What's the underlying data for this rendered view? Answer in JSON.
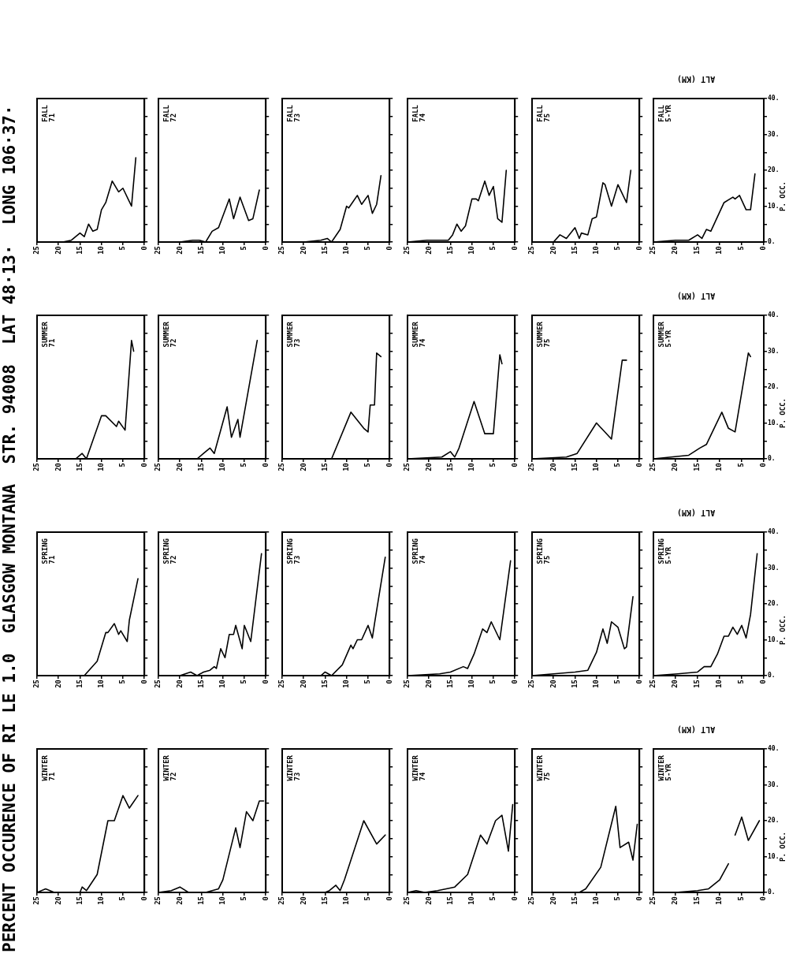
{
  "chart_data": [
    {
      "type": "line",
      "title": "FALL 71",
      "annotations": [
        "PERCENT OCCURENCE OF RI LE 1.0  GLASGOW MONTANA  STR. 94008  LAT 48·13·  LONG 106·37·"
      ],
      "color": "#000000",
      "x": [
        25,
        19,
        17,
        15,
        14,
        13,
        12,
        11,
        10,
        9,
        7.5,
        6,
        5,
        3,
        2
      ],
      "values": [
        0,
        0,
        0.5,
        2.5,
        1.5,
        5,
        3,
        3.5,
        9,
        11,
        17,
        14,
        15,
        10,
        23.5
      ],
      "xlim": [
        25,
        0
      ],
      "ylim": [
        0,
        40
      ],
      "xticks": [
        25,
        20,
        15,
        10,
        5,
        0
      ],
      "yticks": [
        {
          "value": 0,
          "label": null
        },
        {
          "value": 5,
          "label": null
        },
        {
          "value": 10,
          "label": null
        },
        {
          "value": 15,
          "label": null
        },
        {
          "value": 20,
          "label": null
        },
        {
          "value": 25,
          "label": null
        },
        {
          "value": 30,
          "label": null
        },
        {
          "value": 35,
          "label": null
        },
        {
          "value": 40,
          "label": null
        }
      ],
      "tick_labels": "x"
    },
    {
      "type": "line",
      "title": "FALL 72",
      "color": "#000000",
      "x": [
        25,
        20,
        17,
        15.5,
        14,
        12.5,
        11,
        8.5,
        7.5,
        6,
        4,
        3,
        1.5
      ],
      "values": [
        0,
        0,
        0.5,
        0.5,
        0,
        3,
        4,
        12,
        6.5,
        12.5,
        6,
        6.5,
        14.5
      ],
      "xlim": [
        25,
        0
      ],
      "ylim": [
        0,
        40
      ],
      "xticks": [
        25,
        20,
        15,
        10,
        5,
        0
      ],
      "yticks": [
        {
          "value": 0,
          "label": null
        },
        {
          "value": 5,
          "label": null
        },
        {
          "value": 10,
          "label": null
        },
        {
          "value": 15,
          "label": null
        },
        {
          "value": 20,
          "label": null
        },
        {
          "value": 25,
          "label": null
        },
        {
          "value": 30,
          "label": null
        },
        {
          "value": 35,
          "label": null
        },
        {
          "value": 40,
          "label": null
        }
      ],
      "tick_labels": "x"
    },
    {
      "type": "line",
      "title": "FALL 73",
      "color": "#000000",
      "x": [
        25,
        20,
        16,
        14.5,
        13.5,
        11.5,
        10,
        9.5,
        7.5,
        6.5,
        5,
        4,
        3,
        2
      ],
      "values": [
        0,
        0,
        0.5,
        1,
        0,
        3.5,
        10,
        9.5,
        13,
        10.5,
        13,
        8,
        10.5,
        18.5
      ],
      "xlim": [
        25,
        0
      ],
      "ylim": [
        0,
        40
      ],
      "xticks": [
        25,
        20,
        15,
        10,
        5,
        0
      ],
      "yticks": [
        {
          "value": 0,
          "label": null
        },
        {
          "value": 5,
          "label": null
        },
        {
          "value": 10,
          "label": null
        },
        {
          "value": 15,
          "label": null
        },
        {
          "value": 20,
          "label": null
        },
        {
          "value": 25,
          "label": null
        },
        {
          "value": 30,
          "label": null
        },
        {
          "value": 35,
          "label": null
        },
        {
          "value": 40,
          "label": null
        }
      ],
      "tick_labels": "x"
    },
    {
      "type": "line",
      "title": "FALL 74",
      "color": "#000000",
      "x": [
        25,
        20.5,
        15.5,
        14.5,
        13.5,
        12.5,
        11.5,
        10,
        9,
        8.5,
        7,
        6,
        5,
        4,
        3,
        2
      ],
      "values": [
        0,
        0.5,
        0.5,
        2,
        5,
        3,
        4.5,
        12,
        12,
        11.5,
        17,
        13,
        15.5,
        6.5,
        5.5,
        20
      ],
      "xlim": [
        25,
        0
      ],
      "ylim": [
        0,
        40
      ],
      "xticks": [
        25,
        20,
        15,
        10,
        5,
        0
      ],
      "yticks": [
        {
          "value": 0,
          "label": null
        },
        {
          "value": 5,
          "label": null
        },
        {
          "value": 10,
          "label": null
        },
        {
          "value": 15,
          "label": null
        },
        {
          "value": 20,
          "label": null
        },
        {
          "value": 25,
          "label": null
        },
        {
          "value": 30,
          "label": null
        },
        {
          "value": 35,
          "label": null
        },
        {
          "value": 40,
          "label": null
        }
      ],
      "tick_labels": "x"
    },
    {
      "type": "line",
      "title": "FALL 75",
      "color": "#000000",
      "x": [
        25,
        20,
        18.5,
        17,
        15,
        14,
        13.5,
        12,
        11,
        10,
        8.5,
        8,
        6.5,
        5,
        3,
        2
      ],
      "values": [
        0,
        0,
        2,
        1,
        4,
        1,
        2.5,
        2,
        6.5,
        7,
        16.5,
        16,
        10,
        16,
        11,
        20
      ],
      "xlim": [
        25,
        0
      ],
      "ylim": [
        0,
        40
      ],
      "xticks": [
        25,
        20,
        15,
        10,
        5,
        0
      ],
      "yticks": [
        {
          "value": 0,
          "label": null
        },
        {
          "value": 5,
          "label": null
        },
        {
          "value": 10,
          "label": null
        },
        {
          "value": 15,
          "label": null
        },
        {
          "value": 20,
          "label": null
        },
        {
          "value": 25,
          "label": null
        },
        {
          "value": 30,
          "label": null
        },
        {
          "value": 35,
          "label": null
        },
        {
          "value": 40,
          "label": null
        }
      ],
      "tick_labels": "x"
    },
    {
      "type": "line",
      "title": "FALL 5-YR",
      "xlabel": "ALT (KM)",
      "ylabel": "P. OCC.",
      "color": "#000000",
      "x": [
        25,
        20,
        17,
        15,
        14,
        13,
        12,
        9,
        7,
        6.5,
        5.5,
        4,
        3,
        2
      ],
      "values": [
        0,
        0.5,
        0.5,
        2,
        1,
        3.5,
        3,
        11,
        12.5,
        12,
        13,
        9,
        9,
        19
      ],
      "xlim": [
        25,
        0
      ],
      "ylim": [
        0,
        40
      ],
      "xticks": [
        25,
        20,
        15,
        10,
        5,
        0
      ],
      "yticks": [
        {
          "value": 0,
          "label": "0."
        },
        {
          "value": 5,
          "label": null
        },
        {
          "value": 10,
          "label": "10."
        },
        {
          "value": 15,
          "label": null
        },
        {
          "value": 20,
          "label": "20."
        },
        {
          "value": 25,
          "label": null
        },
        {
          "value": 30,
          "label": "30."
        },
        {
          "value": 35,
          "label": null
        },
        {
          "value": 40,
          "label": "40."
        }
      ]
    },
    {
      "type": "line",
      "title": "SUMMER 71",
      "color": "#000000",
      "x": [
        25,
        16,
        14.5,
        13.5,
        10,
        9,
        6.5,
        6,
        4.5,
        3,
        2.5
      ],
      "values": [
        0,
        0,
        1.5,
        0,
        12,
        12,
        9,
        10.5,
        8,
        33,
        30
      ],
      "xlim": [
        25,
        0
      ],
      "ylim": [
        0,
        40
      ],
      "xticks": [
        25,
        20,
        15,
        10,
        5,
        0
      ],
      "yticks": [
        {
          "value": 0,
          "label": null
        },
        {
          "value": 5,
          "label": null
        },
        {
          "value": 10,
          "label": null
        },
        {
          "value": 15,
          "label": null
        },
        {
          "value": 20,
          "label": null
        },
        {
          "value": 25,
          "label": null
        },
        {
          "value": 30,
          "label": null
        },
        {
          "value": 35,
          "label": null
        },
        {
          "value": 40,
          "label": null
        }
      ],
      "tick_labels": "x"
    },
    {
      "type": "line",
      "title": "SUMMER 72",
      "color": "#000000",
      "x": [
        25,
        16,
        14.5,
        13,
        12,
        9,
        8,
        6.5,
        6,
        2
      ],
      "values": [
        0,
        0,
        1.5,
        3,
        1.5,
        14.5,
        6,
        11,
        6,
        33
      ],
      "xlim": [
        25,
        0
      ],
      "ylim": [
        0,
        40
      ],
      "xticks": [
        25,
        20,
        15,
        10,
        5,
        0
      ],
      "yticks": [
        {
          "value": 0,
          "label": null
        },
        {
          "value": 5,
          "label": null
        },
        {
          "value": 10,
          "label": null
        },
        {
          "value": 15,
          "label": null
        },
        {
          "value": 20,
          "label": null
        },
        {
          "value": 25,
          "label": null
        },
        {
          "value": 30,
          "label": null
        },
        {
          "value": 35,
          "label": null
        },
        {
          "value": 40,
          "label": null
        }
      ],
      "tick_labels": "x"
    },
    {
      "type": "line",
      "title": "SUMMER 73",
      "color": "#000000",
      "x": [
        25,
        13.5,
        9,
        6,
        5,
        4.5,
        3.5,
        3,
        2
      ],
      "values": [
        0,
        0,
        13,
        8.5,
        7.5,
        15,
        15,
        29.5,
        28.5
      ],
      "xlim": [
        25,
        0
      ],
      "ylim": [
        0,
        40
      ],
      "xticks": [
        25,
        20,
        15,
        10,
        5,
        0
      ],
      "yticks": [
        {
          "value": 0,
          "label": null
        },
        {
          "value": 5,
          "label": null
        },
        {
          "value": 10,
          "label": null
        },
        {
          "value": 15,
          "label": null
        },
        {
          "value": 20,
          "label": null
        },
        {
          "value": 25,
          "label": null
        },
        {
          "value": 30,
          "label": null
        },
        {
          "value": 35,
          "label": null
        },
        {
          "value": 40,
          "label": null
        }
      ],
      "tick_labels": "x"
    },
    {
      "type": "line",
      "title": "SUMMER 74",
      "color": "#000000",
      "x": [
        25,
        17,
        15,
        14,
        13,
        9.5,
        7,
        5,
        3.5,
        3
      ],
      "values": [
        0,
        0.5,
        2,
        0.5,
        3,
        16,
        7,
        7,
        29,
        26.5
      ],
      "xlim": [
        25,
        0
      ],
      "ylim": [
        0,
        40
      ],
      "xticks": [
        25,
        20,
        15,
        10,
        5,
        0
      ],
      "yticks": [
        {
          "value": 0,
          "label": null
        },
        {
          "value": 5,
          "label": null
        },
        {
          "value": 10,
          "label": null
        },
        {
          "value": 15,
          "label": null
        },
        {
          "value": 20,
          "label": null
        },
        {
          "value": 25,
          "label": null
        },
        {
          "value": 30,
          "label": null
        },
        {
          "value": 35,
          "label": null
        },
        {
          "value": 40,
          "label": null
        }
      ],
      "tick_labels": "x"
    },
    {
      "type": "line",
      "title": "SUMMER 75",
      "color": "#000000",
      "x": [
        25,
        17,
        14.5,
        10,
        6.5,
        4,
        3
      ],
      "values": [
        0,
        0.5,
        1.5,
        10,
        5.5,
        27.5,
        27.5
      ],
      "xlim": [
        25,
        0
      ],
      "ylim": [
        0,
        40
      ],
      "xticks": [
        25,
        20,
        15,
        10,
        5,
        0
      ],
      "yticks": [
        {
          "value": 0,
          "label": null
        },
        {
          "value": 5,
          "label": null
        },
        {
          "value": 10,
          "label": null
        },
        {
          "value": 15,
          "label": null
        },
        {
          "value": 20,
          "label": null
        },
        {
          "value": 25,
          "label": null
        },
        {
          "value": 30,
          "label": null
        },
        {
          "value": 35,
          "label": null
        },
        {
          "value": 40,
          "label": null
        }
      ],
      "tick_labels": "x"
    },
    {
      "type": "line",
      "title": "SUMMER 5-YR",
      "xlabel": "ALT (KM)",
      "ylabel": "P. OCC.",
      "color": "#000000",
      "x": [
        25,
        17,
        14.5,
        13,
        9.5,
        8,
        6.5,
        3.5,
        3
      ],
      "values": [
        0,
        1,
        3,
        4,
        13,
        8.5,
        7.5,
        29.5,
        28.5
      ],
      "xlim": [
        25,
        0
      ],
      "ylim": [
        0,
        40
      ],
      "xticks": [
        25,
        20,
        15,
        10,
        5,
        0
      ],
      "yticks": [
        {
          "value": 0,
          "label": "0."
        },
        {
          "value": 5,
          "label": null
        },
        {
          "value": 10,
          "label": "10."
        },
        {
          "value": 15,
          "label": null
        },
        {
          "value": 20,
          "label": "20."
        },
        {
          "value": 25,
          "label": null
        },
        {
          "value": 30,
          "label": "30."
        },
        {
          "value": 35,
          "label": null
        },
        {
          "value": 40,
          "label": "40."
        }
      ]
    },
    {
      "type": "line",
      "title": "SPRING 71",
      "color": "#000000",
      "x": [
        25,
        14,
        11,
        9,
        8.5,
        7,
        6,
        5.5,
        4,
        3.5,
        1.5
      ],
      "values": [
        0,
        0,
        4,
        12,
        12,
        14.5,
        11.5,
        12.5,
        9.5,
        15.5,
        27
      ],
      "xlim": [
        25,
        0
      ],
      "ylim": [
        0,
        40
      ],
      "xticks": [
        25,
        20,
        15,
        10,
        5,
        0
      ],
      "yticks": [
        {
          "value": 0,
          "label": null
        },
        {
          "value": 5,
          "label": null
        },
        {
          "value": 10,
          "label": null
        },
        {
          "value": 15,
          "label": null
        },
        {
          "value": 20,
          "label": null
        },
        {
          "value": 25,
          "label": null
        },
        {
          "value": 30,
          "label": null
        },
        {
          "value": 35,
          "label": null
        },
        {
          "value": 40,
          "label": null
        }
      ],
      "tick_labels": "x"
    },
    {
      "type": "line",
      "title": "SPRING 72",
      "color": "#000000",
      "x": [
        25,
        20,
        17.5,
        16,
        14.5,
        13,
        12,
        11.5,
        10.5,
        9.5,
        8.5,
        7.5,
        7,
        5.5,
        5,
        3.5,
        1
      ],
      "values": [
        0,
        0,
        1,
        0,
        1,
        1.5,
        2.5,
        2,
        7.5,
        5,
        11.5,
        11.5,
        14,
        7.5,
        14,
        9.5,
        34
      ],
      "xlim": [
        25,
        0
      ],
      "ylim": [
        0,
        40
      ],
      "xticks": [
        25,
        20,
        15,
        10,
        5,
        0
      ],
      "yticks": [
        {
          "value": 0,
          "label": null
        },
        {
          "value": 5,
          "label": null
        },
        {
          "value": 10,
          "label": null
        },
        {
          "value": 15,
          "label": null
        },
        {
          "value": 20,
          "label": null
        },
        {
          "value": 25,
          "label": null
        },
        {
          "value": 30,
          "label": null
        },
        {
          "value": 35,
          "label": null
        },
        {
          "value": 40,
          "label": null
        }
      ],
      "tick_labels": "x"
    },
    {
      "type": "line",
      "title": "SPRING 73",
      "color": "#000000",
      "x": [
        25,
        16,
        15,
        13.5,
        11,
        9,
        8.5,
        7.5,
        6.5,
        5,
        4,
        3.5,
        1
      ],
      "values": [
        0,
        0,
        1,
        0,
        3,
        8.5,
        7.5,
        10,
        10,
        14,
        10.5,
        14.5,
        33
      ],
      "xlim": [
        25,
        0
      ],
      "ylim": [
        0,
        40
      ],
      "xticks": [
        25,
        20,
        15,
        10,
        5,
        0
      ],
      "yticks": [
        {
          "value": 0,
          "label": null
        },
        {
          "value": 5,
          "label": null
        },
        {
          "value": 10,
          "label": null
        },
        {
          "value": 15,
          "label": null
        },
        {
          "value": 20,
          "label": null
        },
        {
          "value": 25,
          "label": null
        },
        {
          "value": 30,
          "label": null
        },
        {
          "value": 35,
          "label": null
        },
        {
          "value": 40,
          "label": null
        }
      ],
      "tick_labels": "x"
    },
    {
      "type": "line",
      "title": "SPRING 74",
      "color": "#000000",
      "x": [
        25,
        17.5,
        15,
        12,
        11,
        9.5,
        7.5,
        6.5,
        5.5,
        3.5,
        1
      ],
      "values": [
        0,
        0.5,
        1,
        2.5,
        2,
        6,
        13,
        12,
        15,
        10,
        32
      ],
      "xlim": [
        25,
        0
      ],
      "ylim": [
        0,
        40
      ],
      "xticks": [
        25,
        20,
        15,
        10,
        5,
        0
      ],
      "yticks": [
        {
          "value": 0,
          "label": null
        },
        {
          "value": 5,
          "label": null
        },
        {
          "value": 10,
          "label": null
        },
        {
          "value": 15,
          "label": null
        },
        {
          "value": 20,
          "label": null
        },
        {
          "value": 25,
          "label": null
        },
        {
          "value": 30,
          "label": null
        },
        {
          "value": 35,
          "label": null
        },
        {
          "value": 40,
          "label": null
        }
      ],
      "tick_labels": "x"
    },
    {
      "type": "line",
      "title": "SPRING 75",
      "color": "#000000",
      "x": [
        25,
        15,
        12,
        10,
        8.5,
        7.5,
        6.5,
        5,
        3.5,
        3,
        1.5
      ],
      "values": [
        0,
        1,
        1.5,
        6.5,
        13,
        9,
        15,
        13.5,
        7.5,
        8,
        22
      ],
      "xlim": [
        25,
        0
      ],
      "ylim": [
        0,
        40
      ],
      "xticks": [
        25,
        20,
        15,
        10,
        5,
        0
      ],
      "yticks": [
        {
          "value": 0,
          "label": null
        },
        {
          "value": 5,
          "label": null
        },
        {
          "value": 10,
          "label": null
        },
        {
          "value": 15,
          "label": null
        },
        {
          "value": 20,
          "label": null
        },
        {
          "value": 25,
          "label": null
        },
        {
          "value": 30,
          "label": null
        },
        {
          "value": 35,
          "label": null
        },
        {
          "value": 40,
          "label": null
        }
      ],
      "tick_labels": "x"
    },
    {
      "type": "line",
      "title": "SPRING 5-YR",
      "xlabel": "ALT (KM)",
      "ylabel": "P. OCC.",
      "color": "#000000",
      "x": [
        25,
        19.5,
        15,
        13.5,
        12,
        10.5,
        9,
        8,
        7,
        6,
        5,
        4,
        3,
        1.5
      ],
      "values": [
        0,
        0.5,
        1,
        2.5,
        2.5,
        6,
        11,
        11,
        13.5,
        11.5,
        14,
        10.5,
        17,
        34
      ],
      "xlim": [
        25,
        0
      ],
      "ylim": [
        0,
        40
      ],
      "xticks": [
        25,
        20,
        15,
        10,
        5,
        0
      ],
      "yticks": [
        {
          "value": 0,
          "label": "0."
        },
        {
          "value": 5,
          "label": null
        },
        {
          "value": 10,
          "label": "10."
        },
        {
          "value": 15,
          "label": null
        },
        {
          "value": 20,
          "label": "20."
        },
        {
          "value": 25,
          "label": null
        },
        {
          "value": 30,
          "label": "30."
        },
        {
          "value": 35,
          "label": null
        },
        {
          "value": 40,
          "label": "40."
        }
      ]
    },
    {
      "type": "line",
      "title": "WINTER 71",
      "color": "#000000",
      "x": [
        25,
        23,
        21,
        15,
        14.5,
        13.5,
        11,
        8.5,
        7,
        5,
        3.5,
        1.5
      ],
      "values": [
        0,
        1,
        0,
        0,
        1.5,
        0.5,
        5,
        20,
        20,
        27,
        23.5,
        27
      ],
      "xlim": [
        25,
        0
      ],
      "ylim": [
        0,
        40
      ],
      "xticks": [
        25,
        20,
        15,
        10,
        5,
        0
      ],
      "yticks": [
        {
          "value": 0,
          "label": null
        },
        {
          "value": 5,
          "label": null
        },
        {
          "value": 10,
          "label": null
        },
        {
          "value": 15,
          "label": null
        },
        {
          "value": 20,
          "label": null
        },
        {
          "value": 25,
          "label": null
        },
        {
          "value": 30,
          "label": null
        },
        {
          "value": 35,
          "label": null
        },
        {
          "value": 40,
          "label": null
        }
      ],
      "tick_labels": "x"
    },
    {
      "type": "line",
      "title": "WINTER 72",
      "color": "#000000",
      "x": [
        25,
        22,
        20,
        18,
        14,
        11,
        10,
        7,
        6,
        4.5,
        3,
        1.5,
        0.5
      ],
      "values": [
        0,
        0.5,
        1.5,
        0,
        0,
        1,
        3.5,
        18,
        12.5,
        22.5,
        20,
        25.5,
        25.5
      ],
      "xlim": [
        25,
        0
      ],
      "ylim": [
        0,
        40
      ],
      "xticks": [
        25,
        20,
        15,
        10,
        5,
        0
      ],
      "yticks": [
        {
          "value": 0,
          "label": null
        },
        {
          "value": 5,
          "label": null
        },
        {
          "value": 10,
          "label": null
        },
        {
          "value": 15,
          "label": null
        },
        {
          "value": 20,
          "label": null
        },
        {
          "value": 25,
          "label": null
        },
        {
          "value": 30,
          "label": null
        },
        {
          "value": 35,
          "label": null
        },
        {
          "value": 40,
          "label": null
        }
      ],
      "tick_labels": "x"
    },
    {
      "type": "line",
      "title": "WINTER 73",
      "color": "#000000",
      "x": [
        25,
        15,
        14,
        12.5,
        11.5,
        10.5,
        7.5,
        6,
        3,
        1
      ],
      "values": [
        0,
        0,
        0.5,
        2,
        0.5,
        3.5,
        14.5,
        20,
        13.5,
        16
      ],
      "xlim": [
        25,
        0
      ],
      "ylim": [
        0,
        40
      ],
      "xticks": [
        25,
        20,
        15,
        10,
        5,
        0
      ],
      "yticks": [
        {
          "value": 0,
          "label": null
        },
        {
          "value": 5,
          "label": null
        },
        {
          "value": 10,
          "label": null
        },
        {
          "value": 15,
          "label": null
        },
        {
          "value": 20,
          "label": null
        },
        {
          "value": 25,
          "label": null
        },
        {
          "value": 30,
          "label": null
        },
        {
          "value": 35,
          "label": null
        },
        {
          "value": 40,
          "label": null
        }
      ],
      "tick_labels": "x"
    },
    {
      "type": "line",
      "title": "WINTER 74",
      "color": "#000000",
      "x": [
        25,
        23,
        21,
        18,
        14,
        11,
        8,
        6.5,
        4.5,
        3,
        1.5,
        0.5
      ],
      "values": [
        0,
        0.5,
        0,
        0.5,
        1.5,
        5,
        16,
        13.5,
        20,
        21.5,
        11.5,
        24.5
      ],
      "xlim": [
        25,
        0
      ],
      "ylim": [
        0,
        40
      ],
      "xticks": [
        25,
        20,
        15,
        10,
        5,
        0
      ],
      "yticks": [
        {
          "value": 0,
          "label": null
        },
        {
          "value": 5,
          "label": null
        },
        {
          "value": 10,
          "label": null
        },
        {
          "value": 15,
          "label": null
        },
        {
          "value": 20,
          "label": null
        },
        {
          "value": 25,
          "label": null
        },
        {
          "value": 30,
          "label": null
        },
        {
          "value": 35,
          "label": null
        },
        {
          "value": 40,
          "label": null
        }
      ],
      "tick_labels": "x"
    },
    {
      "type": "line",
      "title": "WINTER 75",
      "color": "#000000",
      "x": [
        25,
        20,
        14,
        12.5,
        9,
        5.5,
        4.5,
        2.5,
        1.5,
        0.5
      ],
      "values": [
        0,
        0,
        0,
        1,
        7,
        24,
        12.5,
        14,
        9,
        19
      ],
      "xlim": [
        25,
        0
      ],
      "ylim": [
        0,
        40
      ],
      "xticks": [
        25,
        20,
        15,
        10,
        5,
        0
      ],
      "yticks": [
        {
          "value": 0,
          "label": null
        },
        {
          "value": 5,
          "label": null
        },
        {
          "value": 10,
          "label": null
        },
        {
          "value": 15,
          "label": null
        },
        {
          "value": 20,
          "label": null
        },
        {
          "value": 25,
          "label": null
        },
        {
          "value": 30,
          "label": null
        },
        {
          "value": 35,
          "label": null
        },
        {
          "value": 40,
          "label": null
        }
      ],
      "tick_labels": "x"
    },
    {
      "type": "line",
      "title": "WINTER 5-YR",
      "xlabel": "ALT (KM)",
      "ylabel": "P. OCC.",
      "color": "#000000",
      "x": [
        25,
        20,
        15,
        12.5,
        10,
        8,
        7,
        6.5,
        5,
        3.5,
        1
      ],
      "values": [
        0,
        0,
        0.5,
        1,
        3.5,
        8,
        null,
        16,
        21,
        14.5,
        20
      ],
      "xlim": [
        25,
        0
      ],
      "ylim": [
        0,
        40
      ],
      "xticks": [
        25,
        20,
        15,
        10,
        5,
        0
      ],
      "yticks": [
        {
          "value": 0,
          "label": "0."
        },
        {
          "value": 5,
          "label": null
        },
        {
          "value": 10,
          "label": "10."
        },
        {
          "value": 15,
          "label": null
        },
        {
          "value": 20,
          "label": "20."
        },
        {
          "value": 25,
          "label": null
        },
        {
          "value": 30,
          "label": "30."
        },
        {
          "value": 35,
          "label": null
        },
        {
          "value": 40,
          "label": "40."
        }
      ]
    }
  ]
}
